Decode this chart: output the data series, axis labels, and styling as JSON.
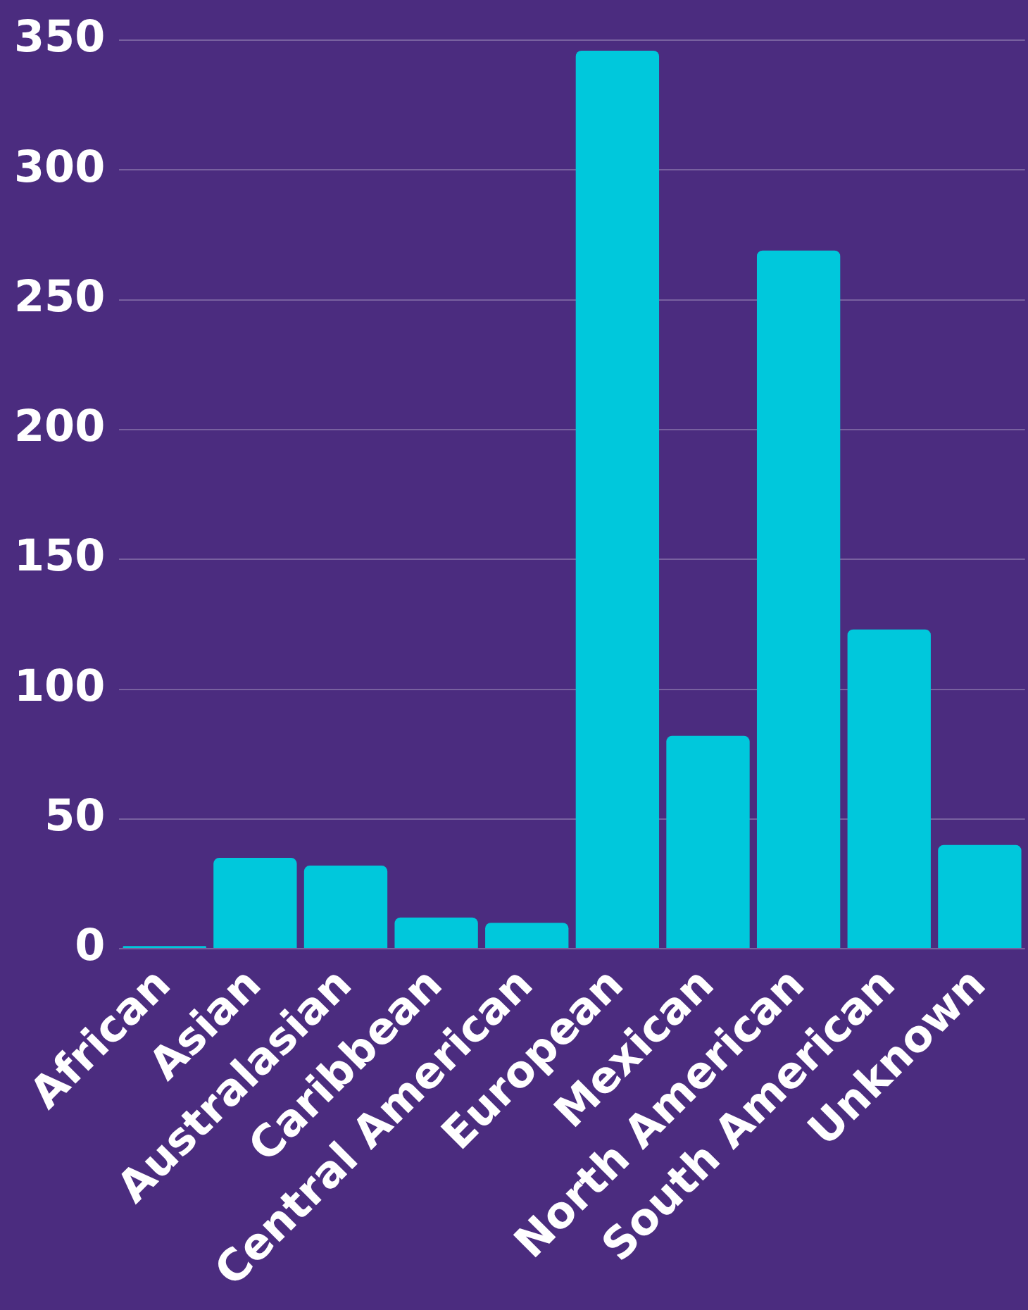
{
  "chart_data": {
    "type": "bar",
    "categories": [
      "African",
      "Asian",
      "Australasian",
      "Caribbean",
      "Central American",
      "European",
      "Mexican",
      "North American",
      "South American",
      "Unknown"
    ],
    "values": [
      1,
      35,
      32,
      12,
      10,
      346,
      82,
      269,
      123,
      40
    ],
    "color": "#00c8dc",
    "ylim": [
      0,
      350
    ],
    "yticks": [
      0,
      50,
      100,
      150,
      200,
      250,
      300,
      350
    ],
    "grid": "y"
  }
}
